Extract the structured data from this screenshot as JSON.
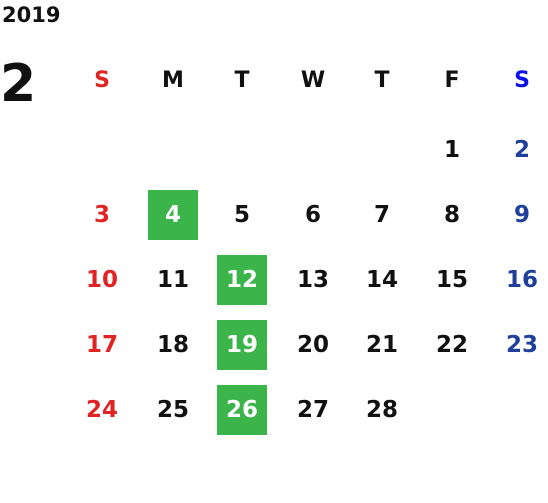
{
  "year": "2019",
  "month": "2",
  "weekdays": [
    "S",
    "M",
    "T",
    "W",
    "T",
    "F",
    "S"
  ],
  "weeks": [
    [
      null,
      null,
      null,
      null,
      null,
      1,
      2
    ],
    [
      3,
      4,
      5,
      6,
      7,
      8,
      9
    ],
    [
      10,
      11,
      12,
      13,
      14,
      15,
      16
    ],
    [
      17,
      18,
      19,
      20,
      21,
      22,
      23
    ],
    [
      24,
      25,
      26,
      27,
      28,
      null,
      null
    ]
  ],
  "highlighted_days": [
    4,
    12,
    19,
    26
  ]
}
